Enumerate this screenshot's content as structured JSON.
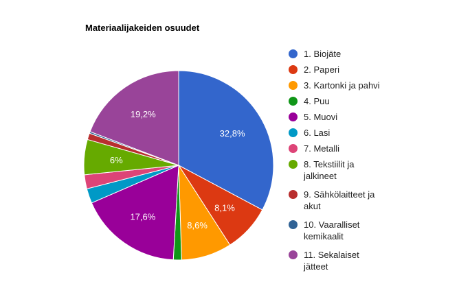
{
  "chart_data": {
    "type": "pie",
    "title": "Materiaalijakeiden osuudet",
    "legend_position": "right",
    "start_angle_deg": 0,
    "slices": [
      {
        "label": "1. Biojäte",
        "value": 32.8,
        "data_label": "32,8%",
        "color": "#3366cc"
      },
      {
        "label": "2. Paperi",
        "value": 8.1,
        "data_label": "8,1%",
        "color": "#dc3912"
      },
      {
        "label": "3. Kartonki ja pahvi",
        "value": 8.6,
        "data_label": "8,6%",
        "color": "#ff9900"
      },
      {
        "label": "4. Puu",
        "value": 1.4,
        "data_label": "",
        "color": "#109618"
      },
      {
        "label": "5. Muovi",
        "value": 17.6,
        "data_label": "17,6%",
        "color": "#990099"
      },
      {
        "label": "6. Lasi",
        "value": 2.5,
        "data_label": "",
        "color": "#0099c6"
      },
      {
        "label": "7. Metalli",
        "value": 2.4,
        "data_label": "",
        "color": "#dd4477"
      },
      {
        "label": "8. Tekstiilit ja jalkineet",
        "value": 6.0,
        "data_label": "6%",
        "color": "#66aa00"
      },
      {
        "label": "9. Sähkölaitteet ja akut",
        "value": 1.1,
        "data_label": "",
        "color": "#b82e2e"
      },
      {
        "label": "10. Vaaralliset kemikaalit",
        "value": 0.3,
        "data_label": "",
        "color": "#316395"
      },
      {
        "label": "11. Sekalaiset jätteet",
        "value": 19.2,
        "data_label": "19,2%",
        "color": "#994499"
      }
    ]
  }
}
